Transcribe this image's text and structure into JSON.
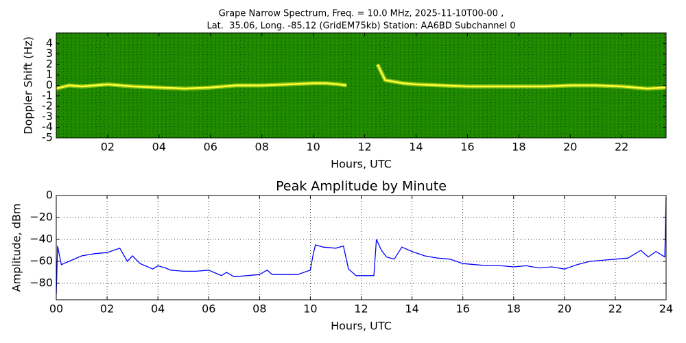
{
  "chart_data": [
    {
      "type": "spectrogram",
      "title": [
        "Grape Narrow Spectrum, Freq. = 10.0 MHz, 2025-11-10T00-00 ,",
        "Lat.  35.06, Long. -85.12 (GridEM75kb) Station: AA6BD Subchannel 0"
      ],
      "xlabel": "Hours, UTC",
      "ylabel": "Doppler Shift (Hz)",
      "background_color": "#1f8a00",
      "color": "#ffff33",
      "x": [
        0,
        0.5,
        1,
        1.5,
        2,
        2.5,
        3,
        4,
        5,
        6,
        7,
        8,
        9,
        10,
        10.5,
        11,
        11.3,
        11.8,
        12.5,
        12.8,
        13.5,
        14,
        15,
        16,
        17,
        18,
        19,
        20,
        21,
        22,
        23,
        23.73
      ],
      "values": [
        -0.3,
        0,
        -0.1,
        0,
        0.1,
        0,
        -0.1,
        -0.2,
        -0.3,
        -0.2,
        0,
        0,
        0.1,
        0.2,
        0.2,
        0.1,
        0,
        null,
        2,
        0.5,
        0.2,
        0.1,
        0,
        -0.1,
        -0.1,
        -0.1,
        -0.1,
        0,
        0,
        -0.1,
        -0.3,
        -0.2
      ],
      "xlim": [
        0,
        23.73
      ],
      "ylim": [
        -5,
        5
      ],
      "xticks": [
        {
          "value": 2,
          "label": "02"
        },
        {
          "value": 4,
          "label": "04"
        },
        {
          "value": 6,
          "label": "06"
        },
        {
          "value": 8,
          "label": "08"
        },
        {
          "value": 10,
          "label": "10"
        },
        {
          "value": 12,
          "label": "12"
        },
        {
          "value": 14,
          "label": "14"
        },
        {
          "value": 16,
          "label": "16"
        },
        {
          "value": 18,
          "label": "18"
        },
        {
          "value": 20,
          "label": "20"
        },
        {
          "value": 22,
          "label": "22"
        }
      ],
      "yticks": [
        4,
        3,
        2,
        1,
        0,
        -1,
        -2,
        -3,
        -4,
        -5
      ],
      "grid": false
    },
    {
      "type": "line",
      "title": "Peak Amplitude by Minute",
      "xlabel": "Hours, UTC",
      "ylabel": "Amplitude, dBm",
      "color": "#0000ff",
      "x": [
        0,
        0.05,
        0.2,
        0.5,
        1,
        1.5,
        2,
        2.5,
        2.8,
        3,
        3.3,
        3.5,
        3.8,
        4,
        4.3,
        4.5,
        5,
        5.5,
        6,
        6.3,
        6.5,
        6.7,
        7,
        7.5,
        8,
        8.3,
        8.5,
        9,
        9.5,
        10,
        10.1,
        10.2,
        10.5,
        11,
        11.3,
        11.5,
        11.8,
        12,
        12.5,
        12.6,
        12.8,
        13,
        13.3,
        13.6,
        14,
        14.5,
        15,
        15.5,
        16,
        16.5,
        17,
        17.5,
        18,
        18.5,
        19,
        19.5,
        20,
        20.5,
        21,
        21.5,
        22,
        22.5,
        23,
        23.3,
        23.6,
        23.95,
        24
      ],
      "values": [
        -90,
        -46,
        -63,
        -60,
        -55,
        -53,
        -52,
        -48,
        -60,
        -55,
        -62,
        -64,
        -67,
        -64,
        -66,
        -68,
        -69,
        -69,
        -68,
        -71,
        -73,
        -70,
        -74,
        -73,
        -72,
        -68,
        -72,
        -72,
        -72,
        -68,
        -55,
        -45,
        -47,
        -48,
        -46,
        -67,
        -73,
        -73,
        -73,
        -40,
        -50,
        -56,
        -58,
        -47,
        -51,
        -55,
        -57,
        -58,
        -62,
        -63,
        -64,
        -64,
        -65,
        -64,
        -66,
        -65,
        -67,
        -63,
        -60,
        -59,
        -58,
        -57,
        -50,
        -56,
        -51,
        -56,
        -2
      ],
      "xlim": [
        0,
        24
      ],
      "ylim": [
        -95,
        0
      ],
      "xticks": [
        {
          "value": 0,
          "label": "00"
        },
        {
          "value": 2,
          "label": "02"
        },
        {
          "value": 4,
          "label": "04"
        },
        {
          "value": 6,
          "label": "06"
        },
        {
          "value": 8,
          "label": "08"
        },
        {
          "value": 10,
          "label": "10"
        },
        {
          "value": 12,
          "label": "12"
        },
        {
          "value": 14,
          "label": "14"
        },
        {
          "value": 16,
          "label": "16"
        },
        {
          "value": 18,
          "label": "18"
        },
        {
          "value": 20,
          "label": "20"
        },
        {
          "value": 22,
          "label": "22"
        },
        {
          "value": 24,
          "label": "24"
        }
      ],
      "yticks": [
        0,
        {
          "value": -20,
          "label": "−20"
        },
        {
          "value": -40,
          "label": "−40"
        },
        {
          "value": -60,
          "label": "−60"
        },
        {
          "value": -80,
          "label": "−80"
        }
      ],
      "grid": true
    }
  ]
}
